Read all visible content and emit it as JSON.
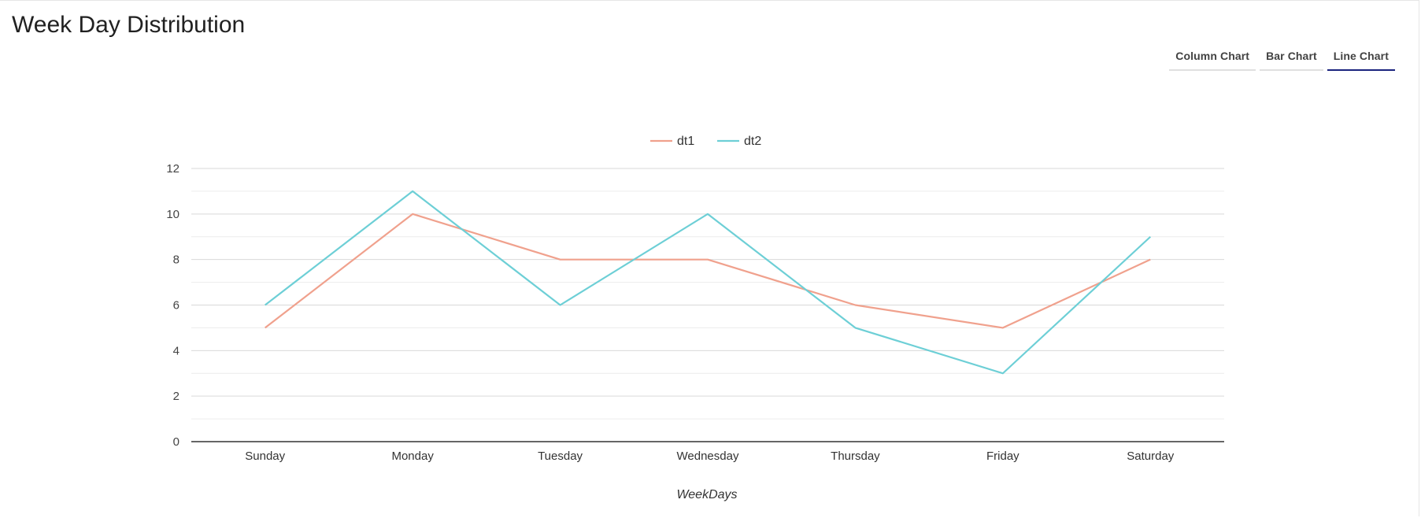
{
  "page": {
    "title": "Week Day Distribution"
  },
  "tabs": [
    {
      "label": "Column Chart",
      "active": false
    },
    {
      "label": "Bar Chart",
      "active": false
    },
    {
      "label": "Line Chart",
      "active": true
    }
  ],
  "colors": {
    "accent": "#1a237e",
    "dt1": "#f0a18d",
    "dt2": "#6dcfd6",
    "grid": "#d9d9d9",
    "grid_minor": "#ececec",
    "axis": "#333333"
  },
  "chart_data": {
    "type": "line",
    "title": "",
    "xlabel": "WeekDays",
    "ylabel": "",
    "categories": [
      "Sunday",
      "Monday",
      "Tuesday",
      "Wednesday",
      "Thursday",
      "Friday",
      "Saturday"
    ],
    "series": [
      {
        "name": "dt1",
        "values": [
          5,
          10,
          8,
          8,
          6,
          5,
          8
        ]
      },
      {
        "name": "dt2",
        "values": [
          6,
          11,
          6,
          10,
          5,
          3,
          9
        ]
      }
    ],
    "ylim": [
      0,
      12
    ],
    "yticks": [
      0,
      2,
      4,
      6,
      8,
      10,
      12
    ],
    "grid": true,
    "legend": "top-center"
  }
}
